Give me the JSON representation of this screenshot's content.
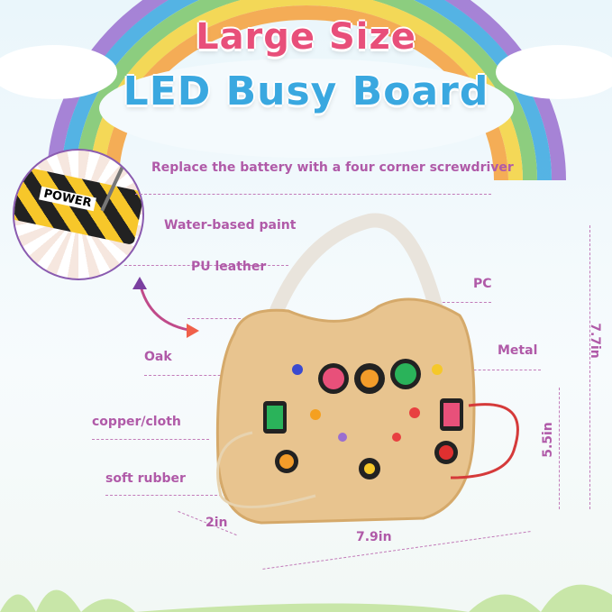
{
  "title": {
    "line1": "Large Size",
    "line2": "LED Busy Board"
  },
  "inset": {
    "badge": "POWER"
  },
  "labels": {
    "battery": "Replace the battery with a four corner screwdriver",
    "paint": "Water-based paint",
    "leather": "PU leather",
    "pc": "PC",
    "metal": "Metal",
    "oak": "Oak",
    "copper": "copper/cloth",
    "rubber": "soft rubber"
  },
  "dimensions": {
    "depth": "2in",
    "width": "7.9in",
    "board_height": "5.5in",
    "total_height": "7.7in"
  },
  "colors": {
    "label": "#b05aa8",
    "wood": "#e8c48f",
    "rainbow": [
      "#e84f7a",
      "#f6a03a",
      "#f5d33b",
      "#7cc66a",
      "#3aa8e0",
      "#9a6fd0"
    ]
  }
}
